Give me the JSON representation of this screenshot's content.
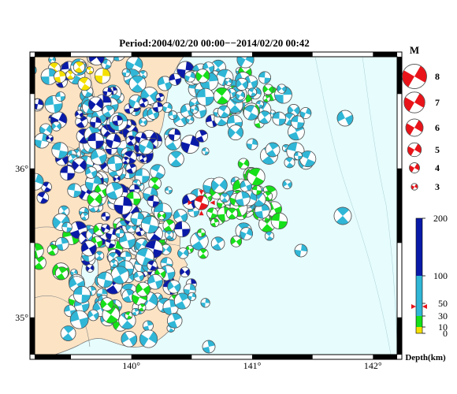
{
  "map": {
    "title": "Period:2004/02/20 00:00−−2014/02/20 00:42",
    "lon_labels": [
      "140°",
      "141°",
      "142°"
    ],
    "lon_values": [
      140,
      141,
      142
    ],
    "lat_labels": [
      "36°",
      "35°"
    ],
    "lat_values": [
      36,
      35
    ],
    "lon_range": [
      139.2,
      142.2
    ],
    "lat_range": [
      34.75,
      36.75
    ],
    "land_color": "#fbe3c4",
    "sea_color": "#e6fcfd"
  },
  "magnitude_legend": {
    "title": "M",
    "labels": [
      "8",
      "7",
      "6",
      "5",
      "4",
      "3"
    ],
    "values": [
      8,
      7,
      6,
      5,
      4,
      3
    ],
    "color": "#e8141a"
  },
  "depth_legend": {
    "title": "Depth(km)",
    "tick_labels": [
      "200",
      "100",
      "50",
      "30",
      "10",
      "0"
    ],
    "tick_values": [
      200,
      100,
      50,
      30,
      10,
      0
    ],
    "colors": {
      "0-10": "#f4e000",
      "10-30": "#16e01a",
      "30-100": "#30b6d6",
      "100-200": "#0a1aa8"
    },
    "marker_value": 45
  },
  "highlight_event": {
    "lon": 140.58,
    "lat": 35.77,
    "magnitude": 5,
    "color": "#e8141a"
  }
}
